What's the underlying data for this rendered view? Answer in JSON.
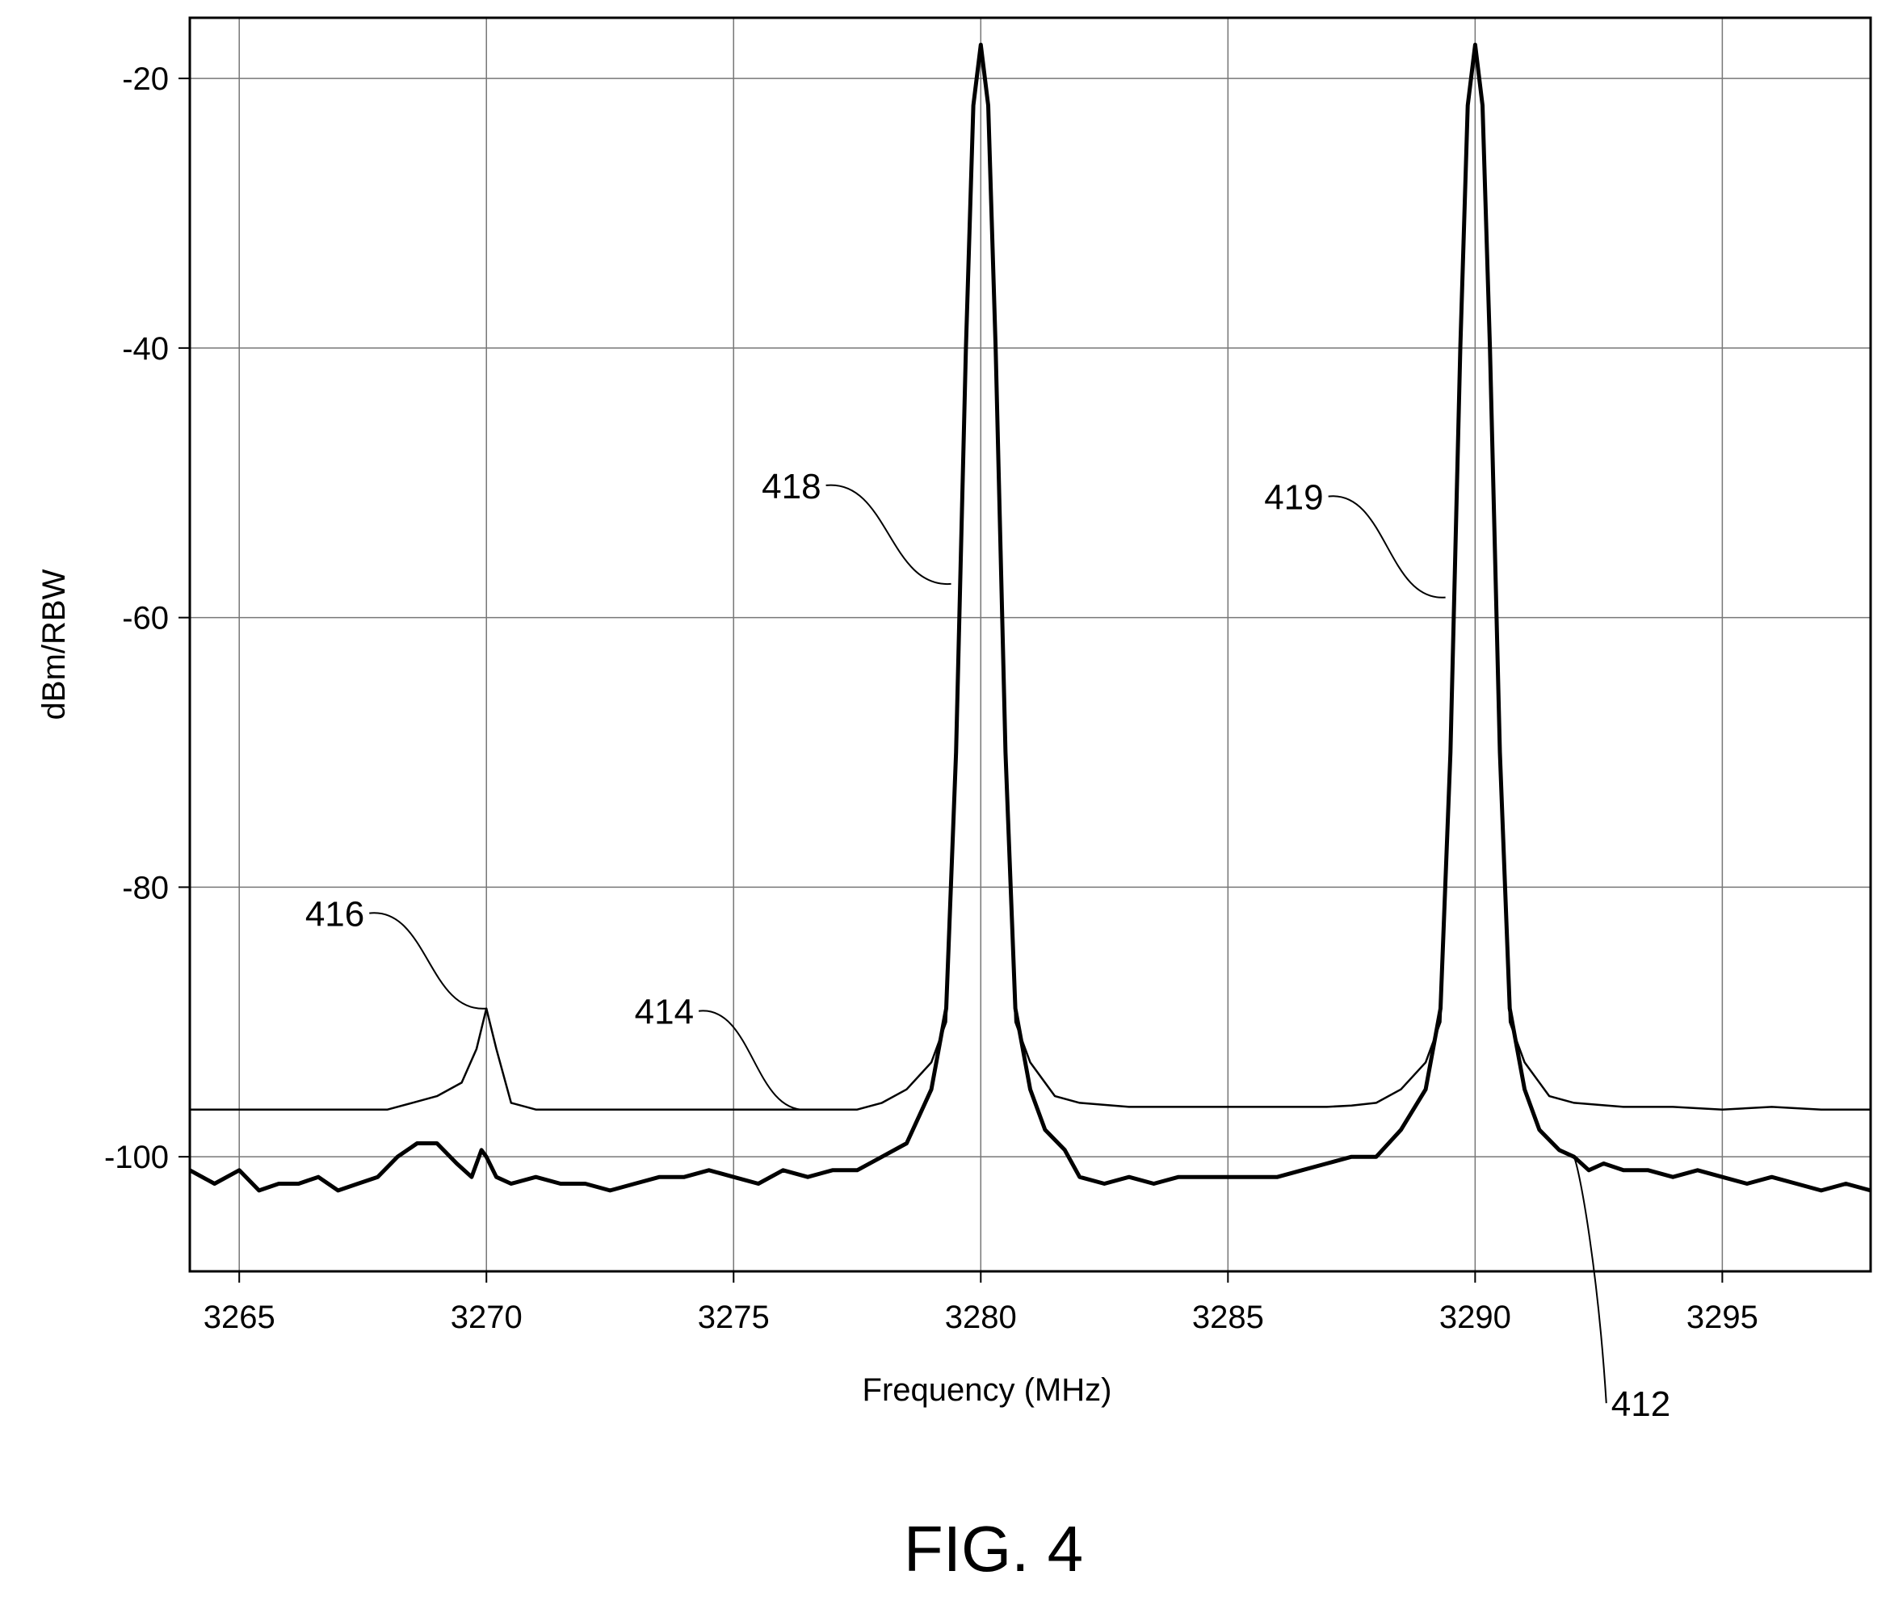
{
  "figure_caption": "FIG. 4",
  "chart_data": {
    "type": "line",
    "title": "",
    "xlabel": "Frequency (MHz)",
    "ylabel": "dBm/RBW",
    "xlim": [
      3264,
      3298
    ],
    "ylim": [
      -108.5,
      -15.5
    ],
    "xticks": [
      3265,
      3270,
      3275,
      3280,
      3285,
      3290,
      3295
    ],
    "yticks": [
      -20,
      -40,
      -60,
      -80,
      -100
    ],
    "grid": true,
    "series": [
      {
        "label": "412",
        "style": "thick",
        "x": [
          3264,
          3264.5,
          3265,
          3265.4,
          3265.8,
          3266.2,
          3266.6,
          3267,
          3267.4,
          3267.8,
          3268.2,
          3268.6,
          3269,
          3269.4,
          3269.7,
          3269.9,
          3270,
          3270.2,
          3270.5,
          3271,
          3271.5,
          3272,
          3272.5,
          3273,
          3273.5,
          3274,
          3274.5,
          3275,
          3275.5,
          3276,
          3276.5,
          3277,
          3277.5,
          3278,
          3278.5,
          3279,
          3279.3,
          3279.5,
          3279.7,
          3279.85,
          3280,
          3280.15,
          3280.3,
          3280.5,
          3280.7,
          3281,
          3281.3,
          3281.7,
          3282,
          3282.5,
          3283,
          3283.5,
          3284,
          3284.5,
          3285,
          3285.5,
          3286,
          3286.5,
          3287,
          3287.5,
          3288,
          3288.5,
          3289,
          3289.3,
          3289.5,
          3289.7,
          3289.85,
          3290,
          3290.15,
          3290.3,
          3290.5,
          3290.7,
          3291,
          3291.3,
          3291.7,
          3292,
          3292.3,
          3292.6,
          3293,
          3293.5,
          3294,
          3294.5,
          3295,
          3295.5,
          3296,
          3296.5,
          3297,
          3297.5,
          3298
        ],
        "y": [
          -101,
          -102,
          -101,
          -102.5,
          -102,
          -102,
          -101.5,
          -102.5,
          -102,
          -101.5,
          -100,
          -99,
          -99,
          -100.5,
          -101.5,
          -99.5,
          -100,
          -101.5,
          -102,
          -101.5,
          -102,
          -102,
          -102.5,
          -102,
          -101.5,
          -101.5,
          -101,
          -101.5,
          -102,
          -101,
          -101.5,
          -101,
          -101,
          -100,
          -99,
          -95,
          -89,
          -70,
          -40,
          -22,
          -17.5,
          -22,
          -40,
          -70,
          -89,
          -95,
          -98,
          -99.5,
          -101.5,
          -102,
          -101.5,
          -102,
          -101.5,
          -101.5,
          -101.5,
          -101.5,
          -101.5,
          -101,
          -100.5,
          -100,
          -100,
          -98,
          -95,
          -89,
          -70,
          -40,
          -22,
          -17.5,
          -22,
          -40,
          -70,
          -89,
          -95,
          -98,
          -99.5,
          -100,
          -101,
          -100.5,
          -101,
          -101,
          -101.5,
          -101,
          -101.5,
          -102,
          -101.5,
          -102,
          -102.5,
          -102,
          -102.5
        ]
      },
      {
        "label": "414",
        "style": "thin",
        "x": [
          3264,
          3266,
          3268,
          3268.5,
          3269,
          3269.5,
          3269.8,
          3270,
          3270.2,
          3270.5,
          3271,
          3272,
          3273,
          3274,
          3275,
          3276,
          3277,
          3277.5,
          3278,
          3278.5,
          3279,
          3279.3,
          3279.5,
          3279.7,
          3279.85,
          3280,
          3280.15,
          3280.3,
          3280.5,
          3280.7,
          3281,
          3281.5,
          3282,
          3283,
          3284,
          3285,
          3286,
          3287,
          3287.5,
          3288,
          3288.5,
          3289,
          3289.3,
          3289.5,
          3289.7,
          3289.85,
          3290,
          3290.15,
          3290.3,
          3290.5,
          3290.7,
          3291,
          3291.5,
          3292,
          3293,
          3294,
          3295,
          3296,
          3297,
          3298
        ],
        "y": [
          -96.5,
          -96.5,
          -96.5,
          -96,
          -95.5,
          -94.5,
          -92,
          -89,
          -92,
          -96,
          -96.5,
          -96.5,
          -96.5,
          -96.5,
          -96.5,
          -96.5,
          -96.5,
          -96.5,
          -96,
          -95,
          -93,
          -90,
          -70,
          -40,
          -22,
          -17.5,
          -22,
          -40,
          -70,
          -90,
          -93,
          -95.5,
          -96,
          -96.3,
          -96.3,
          -96.3,
          -96.3,
          -96.3,
          -96.2,
          -96,
          -95,
          -93,
          -90,
          -70,
          -40,
          -22,
          -17.5,
          -22,
          -40,
          -70,
          -90,
          -93,
          -95.5,
          -96,
          -96.3,
          -96.3,
          -96.5,
          -96.3,
          -96.5,
          -96.5
        ]
      }
    ],
    "annotations": [
      {
        "text": "418",
        "target_x": 3279.4,
        "target_y": -57.5
      },
      {
        "text": "419",
        "target_x": 3289.4,
        "target_y": -58.5
      },
      {
        "text": "416",
        "target_x": 3270,
        "target_y": -89
      },
      {
        "text": "414",
        "target_x": 3276.5,
        "target_y": -96.5
      },
      {
        "text": "412",
        "target_x": 3292,
        "target_y": -100
      }
    ]
  }
}
